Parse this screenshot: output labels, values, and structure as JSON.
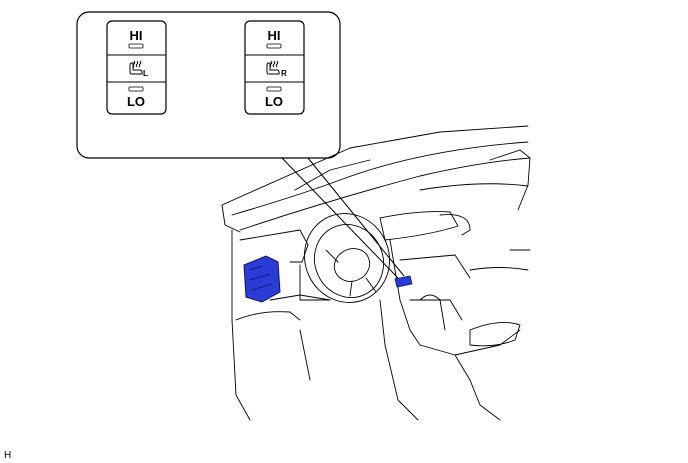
{
  "callout": {
    "left_switch": {
      "hi_label": "HI",
      "lo_label": "LO",
      "side_letter": "L",
      "icon": "seat-heater-icon"
    },
    "right_switch": {
      "hi_label": "HI",
      "lo_label": "LO",
      "side_letter": "R",
      "icon": "seat-heater-icon"
    }
  },
  "figure_code": "H",
  "colors": {
    "highlight": "#2b3bd6",
    "line": "#000000"
  }
}
